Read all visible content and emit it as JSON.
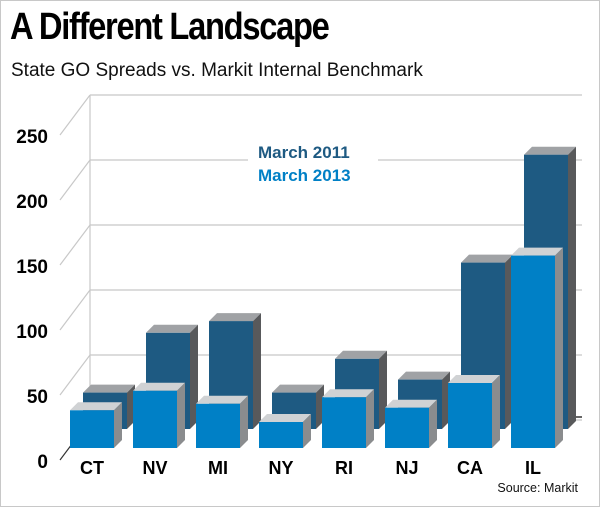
{
  "header": {
    "title": "A Different Landscape",
    "subtitle": "State GO Spreads vs. Markit Internal Benchmark"
  },
  "footer": {
    "source": "Source: Markit"
  },
  "colors": {
    "series_2011": "#1e5a82",
    "series_2013": "#0080c6",
    "top_2011": "#a0a2a5",
    "top_2013": "#d0d2d4",
    "side_2011": "#58595b",
    "side_2013": "#8a8c8e",
    "grid": "#c8c8c8"
  },
  "chart_data": {
    "type": "bar",
    "title": "A Different Landscape",
    "subtitle": "State GO Spreads vs. Markit Internal Benchmark",
    "xlabel": "",
    "ylabel": "",
    "categories": [
      "CT",
      "NV",
      "MI",
      "NY",
      "RI",
      "NJ",
      "CA",
      "IL"
    ],
    "series": [
      {
        "name": "March 2011",
        "values": [
          28,
          74,
          83,
          28,
          54,
          38,
          128,
          211
        ]
      },
      {
        "name": "March 2013",
        "values": [
          29,
          44,
          34,
          20,
          39,
          31,
          50,
          148
        ]
      }
    ],
    "yticks": [
      0,
      50,
      100,
      150,
      200,
      250
    ],
    "ylim": [
      0,
      250
    ],
    "grid": true,
    "legend_position": "top-center",
    "source": "Source: Markit",
    "style": "3d-clustered-bar"
  }
}
